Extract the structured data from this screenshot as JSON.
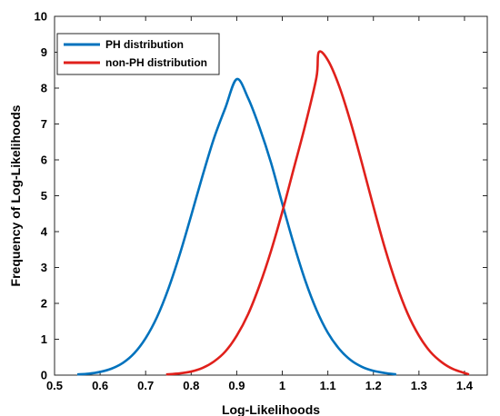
{
  "chart_data": {
    "type": "line",
    "xlabel": "Log-Likelihoods",
    "ylabel": "Frequency of Log-Likelihoods",
    "xlim": [
      0.5,
      1.45
    ],
    "ylim": [
      0,
      10
    ],
    "x_ticks": [
      "0.5",
      "0.6",
      "0.7",
      "0.8",
      "0.9",
      "1",
      "1.1",
      "1.2",
      "1.3",
      "1.4"
    ],
    "y_ticks": [
      "0",
      "1",
      "2",
      "3",
      "4",
      "5",
      "6",
      "7",
      "8",
      "9",
      "10"
    ],
    "grid": false,
    "legend_position": "top-left",
    "series": [
      {
        "name": "PH distribution",
        "color": "#0072BD",
        "x": [
          0.55,
          0.575,
          0.6,
          0.625,
          0.65,
          0.675,
          0.7,
          0.725,
          0.75,
          0.775,
          0.8,
          0.825,
          0.85,
          0.875,
          0.9,
          0.925,
          0.95,
          0.975,
          1.0,
          1.025,
          1.05,
          1.075,
          1.1,
          1.125,
          1.15,
          1.175,
          1.2,
          1.225,
          1.25
        ],
        "y": [
          0.02,
          0.04,
          0.09,
          0.18,
          0.34,
          0.61,
          1.03,
          1.62,
          2.41,
          3.37,
          4.45,
          5.56,
          6.6,
          7.45,
          8.25,
          7.72,
          6.9,
          5.93,
          4.78,
          3.66,
          2.65,
          1.82,
          1.18,
          0.73,
          0.42,
          0.23,
          0.12,
          0.06,
          0.02
        ]
      },
      {
        "name": "non-PH distribution",
        "color": "#E0201B",
        "x": [
          0.745,
          0.775,
          0.8,
          0.825,
          0.85,
          0.875,
          0.9,
          0.925,
          0.95,
          0.975,
          1.0,
          1.025,
          1.05,
          1.075,
          1.08,
          1.1,
          1.125,
          1.15,
          1.175,
          1.2,
          1.225,
          1.25,
          1.275,
          1.3,
          1.325,
          1.35,
          1.375,
          1.41
        ],
        "y": [
          0.02,
          0.05,
          0.1,
          0.2,
          0.38,
          0.66,
          1.1,
          1.7,
          2.5,
          3.45,
          4.55,
          5.75,
          6.95,
          8.3,
          9.0,
          8.78,
          8.05,
          7.05,
          5.9,
          4.7,
          3.55,
          2.55,
          1.72,
          1.1,
          0.65,
          0.36,
          0.17,
          0.02
        ]
      }
    ]
  }
}
